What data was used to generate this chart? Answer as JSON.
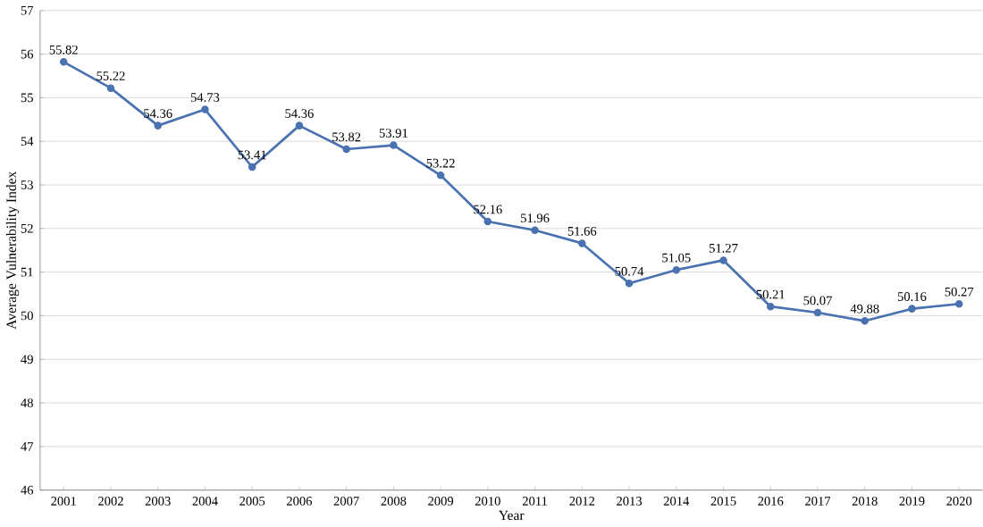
{
  "chart_data": {
    "type": "line",
    "xlabel": "Year",
    "ylabel": "Average Vulnerability Index",
    "categories": [
      "2001",
      "2002",
      "2003",
      "2004",
      "2005",
      "2006",
      "2007",
      "2008",
      "2009",
      "2010",
      "2011",
      "2012",
      "2013",
      "2014",
      "2015",
      "2016",
      "2017",
      "2018",
      "2019",
      "2020"
    ],
    "series": [
      {
        "color": "#4a72b0",
        "values": [
          55.82,
          55.22,
          54.36,
          54.73,
          53.41,
          54.36,
          53.82,
          53.91,
          53.22,
          52.16,
          51.96,
          51.66,
          50.74,
          51.05,
          51.27,
          50.21,
          50.07,
          49.88,
          50.16,
          50.27
        ]
      }
    ],
    "ylim": [
      46,
      57
    ],
    "yticks": [
      46,
      47,
      48,
      49,
      50,
      51,
      52,
      53,
      54,
      55,
      56,
      57
    ],
    "grid": "y",
    "marker": "circle",
    "line_style": "solid",
    "data_labels": true
  }
}
